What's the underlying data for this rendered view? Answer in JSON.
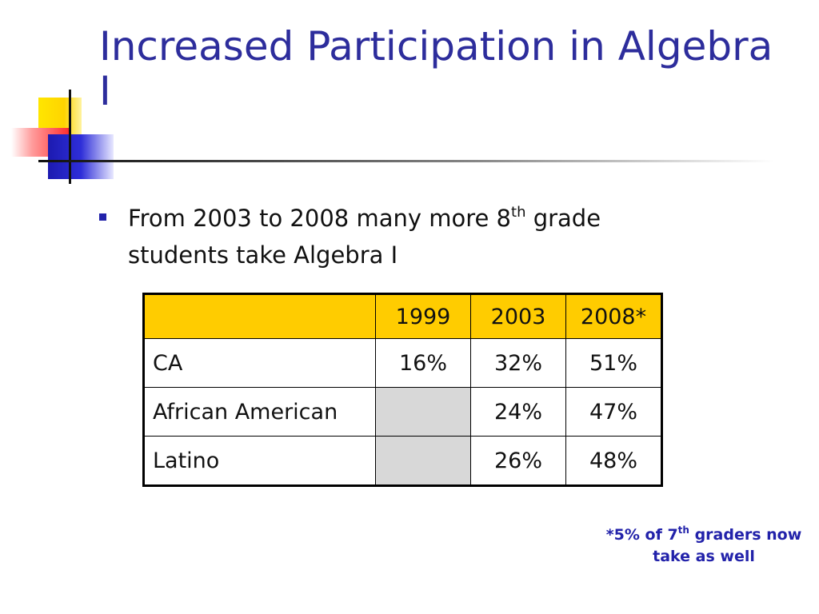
{
  "slide": {
    "title": "Increased Participation in Algebra I",
    "bullet": {
      "text_before": "From 2003 to 2008 many more 8",
      "superscript": "th",
      "text_after": " grade students take Algebra I"
    },
    "table": {
      "columns": [
        "",
        "1999",
        "2003",
        "2008*"
      ],
      "rows": [
        {
          "label": "CA",
          "values": [
            "16%",
            "32%",
            "51%"
          ]
        },
        {
          "label": "African American",
          "values": [
            "",
            "24%",
            "47%"
          ]
        },
        {
          "label": "Latino",
          "values": [
            "",
            "26%",
            "48%"
          ]
        }
      ]
    },
    "footnote": {
      "before": "*5% of 7",
      "superscript": "th",
      "after": " graders now take as well"
    }
  },
  "colors": {
    "title": "#2d2d9c",
    "header_fill": "#ffcc00",
    "empty_cell_fill": "#d8d8d8",
    "footnote": "#2222aa"
  }
}
